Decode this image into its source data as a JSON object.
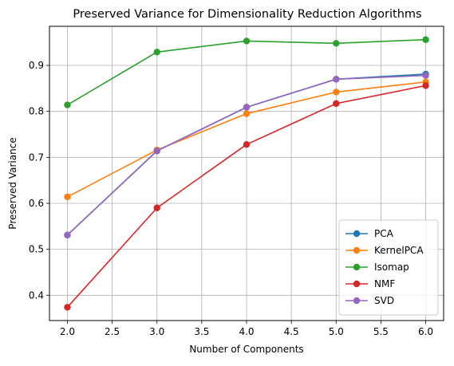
{
  "chart_data": {
    "type": "line",
    "title": "Preserved Variance for Dimensionality Reduction Algorithms",
    "xlabel": "Number of Components",
    "ylabel": "Preserved Variance",
    "x": [
      2.0,
      3.0,
      4.0,
      5.0,
      6.0
    ],
    "xlim": [
      1.8,
      6.2
    ],
    "ylim": [
      0.345,
      0.985
    ],
    "xticks": [
      2.0,
      2.5,
      3.0,
      3.5,
      4.0,
      4.5,
      5.0,
      5.5,
      6.0
    ],
    "xtick_labels": [
      "2.0",
      "2.5",
      "3.0",
      "3.5",
      "4.0",
      "4.5",
      "5.0",
      "5.5",
      "6.0"
    ],
    "yticks": [
      0.4,
      0.5,
      0.6,
      0.7,
      0.8,
      0.9
    ],
    "ytick_labels": [
      "0.4",
      "0.5",
      "0.6",
      "0.7",
      "0.8",
      "0.9"
    ],
    "grid": true,
    "legend_position": "lower-right",
    "series": [
      {
        "name": "PCA",
        "color": "#1f77b4",
        "values": [
          0.531,
          0.714,
          0.809,
          0.87,
          0.881
        ]
      },
      {
        "name": "KernelPCA",
        "color": "#ff7f0e",
        "values": [
          0.614,
          0.716,
          0.795,
          0.842,
          0.864
        ]
      },
      {
        "name": "Isomap",
        "color": "#2ca02c",
        "values": [
          0.814,
          0.929,
          0.953,
          0.948,
          0.956
        ]
      },
      {
        "name": "NMF",
        "color": "#d62728",
        "values": [
          0.374,
          0.59,
          0.728,
          0.817,
          0.856
        ]
      },
      {
        "name": "SVD",
        "color": "#9467bd",
        "values": [
          0.531,
          0.714,
          0.809,
          0.87,
          0.878
        ]
      }
    ]
  }
}
